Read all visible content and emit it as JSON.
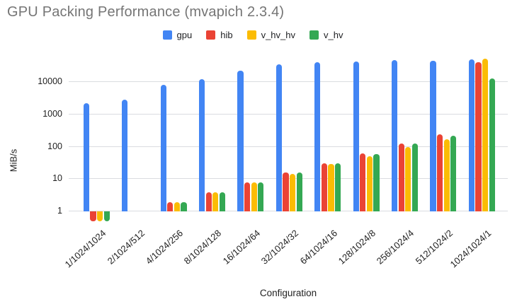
{
  "title": "GPU Packing Performance (mvapich 2.3.4)",
  "legend": {
    "items": [
      {
        "label": "gpu",
        "color": "#4285F4"
      },
      {
        "label": "hib",
        "color": "#EA4335"
      },
      {
        "label": "v_hv_hv",
        "color": "#FBBC04"
      },
      {
        "label": "v_hv",
        "color": "#34A853"
      }
    ]
  },
  "axes": {
    "y_title": "MiB/s",
    "x_title": "Configuration",
    "y_tick_labels": [
      "1",
      "10",
      "100",
      "1000",
      "10000"
    ]
  },
  "chart_data": {
    "type": "bar",
    "title": "GPU Packing Performance (mvapich 2.3.4)",
    "xlabel": "Configuration",
    "ylabel": "MiB/s",
    "y_scale": "log",
    "ylim": [
      0.4,
      80000
    ],
    "grid": true,
    "legend_position": "top",
    "categories": [
      "1/1024/1024",
      "2/1024/512",
      "4/1024/256",
      "8/1024/128",
      "16/1024/64",
      "32/1024/32",
      "64/1024/16",
      "128/1024/8",
      "256/1024/4",
      "512/1024/2",
      "1024/1024/1"
    ],
    "series": [
      {
        "name": "gpu",
        "color": "#4285F4",
        "values": [
          2200,
          2800,
          8000,
          12500,
          22000,
          35000,
          40000,
          43500,
          47500,
          45000,
          50000
        ]
      },
      {
        "name": "hib",
        "color": "#EA4335",
        "values": [
          0.5,
          null,
          1.9,
          3.8,
          8,
          16,
          31,
          61,
          125,
          240,
          42000
        ]
      },
      {
        "name": "v_hv_hv",
        "color": "#FBBC04",
        "values": [
          0.5,
          null,
          1.9,
          3.8,
          8,
          14.5,
          29,
          52,
          100,
          170,
          53000
        ]
      },
      {
        "name": "v_hv",
        "color": "#34A853",
        "values": [
          0.5,
          null,
          1.9,
          3.8,
          8,
          16,
          31,
          59,
          127,
          222,
          13000
        ]
      }
    ]
  },
  "colors": {
    "background": "#ffffff",
    "title_text": "#757575",
    "axis_text": "#1f1f1f",
    "gridline": "#dadce0"
  }
}
